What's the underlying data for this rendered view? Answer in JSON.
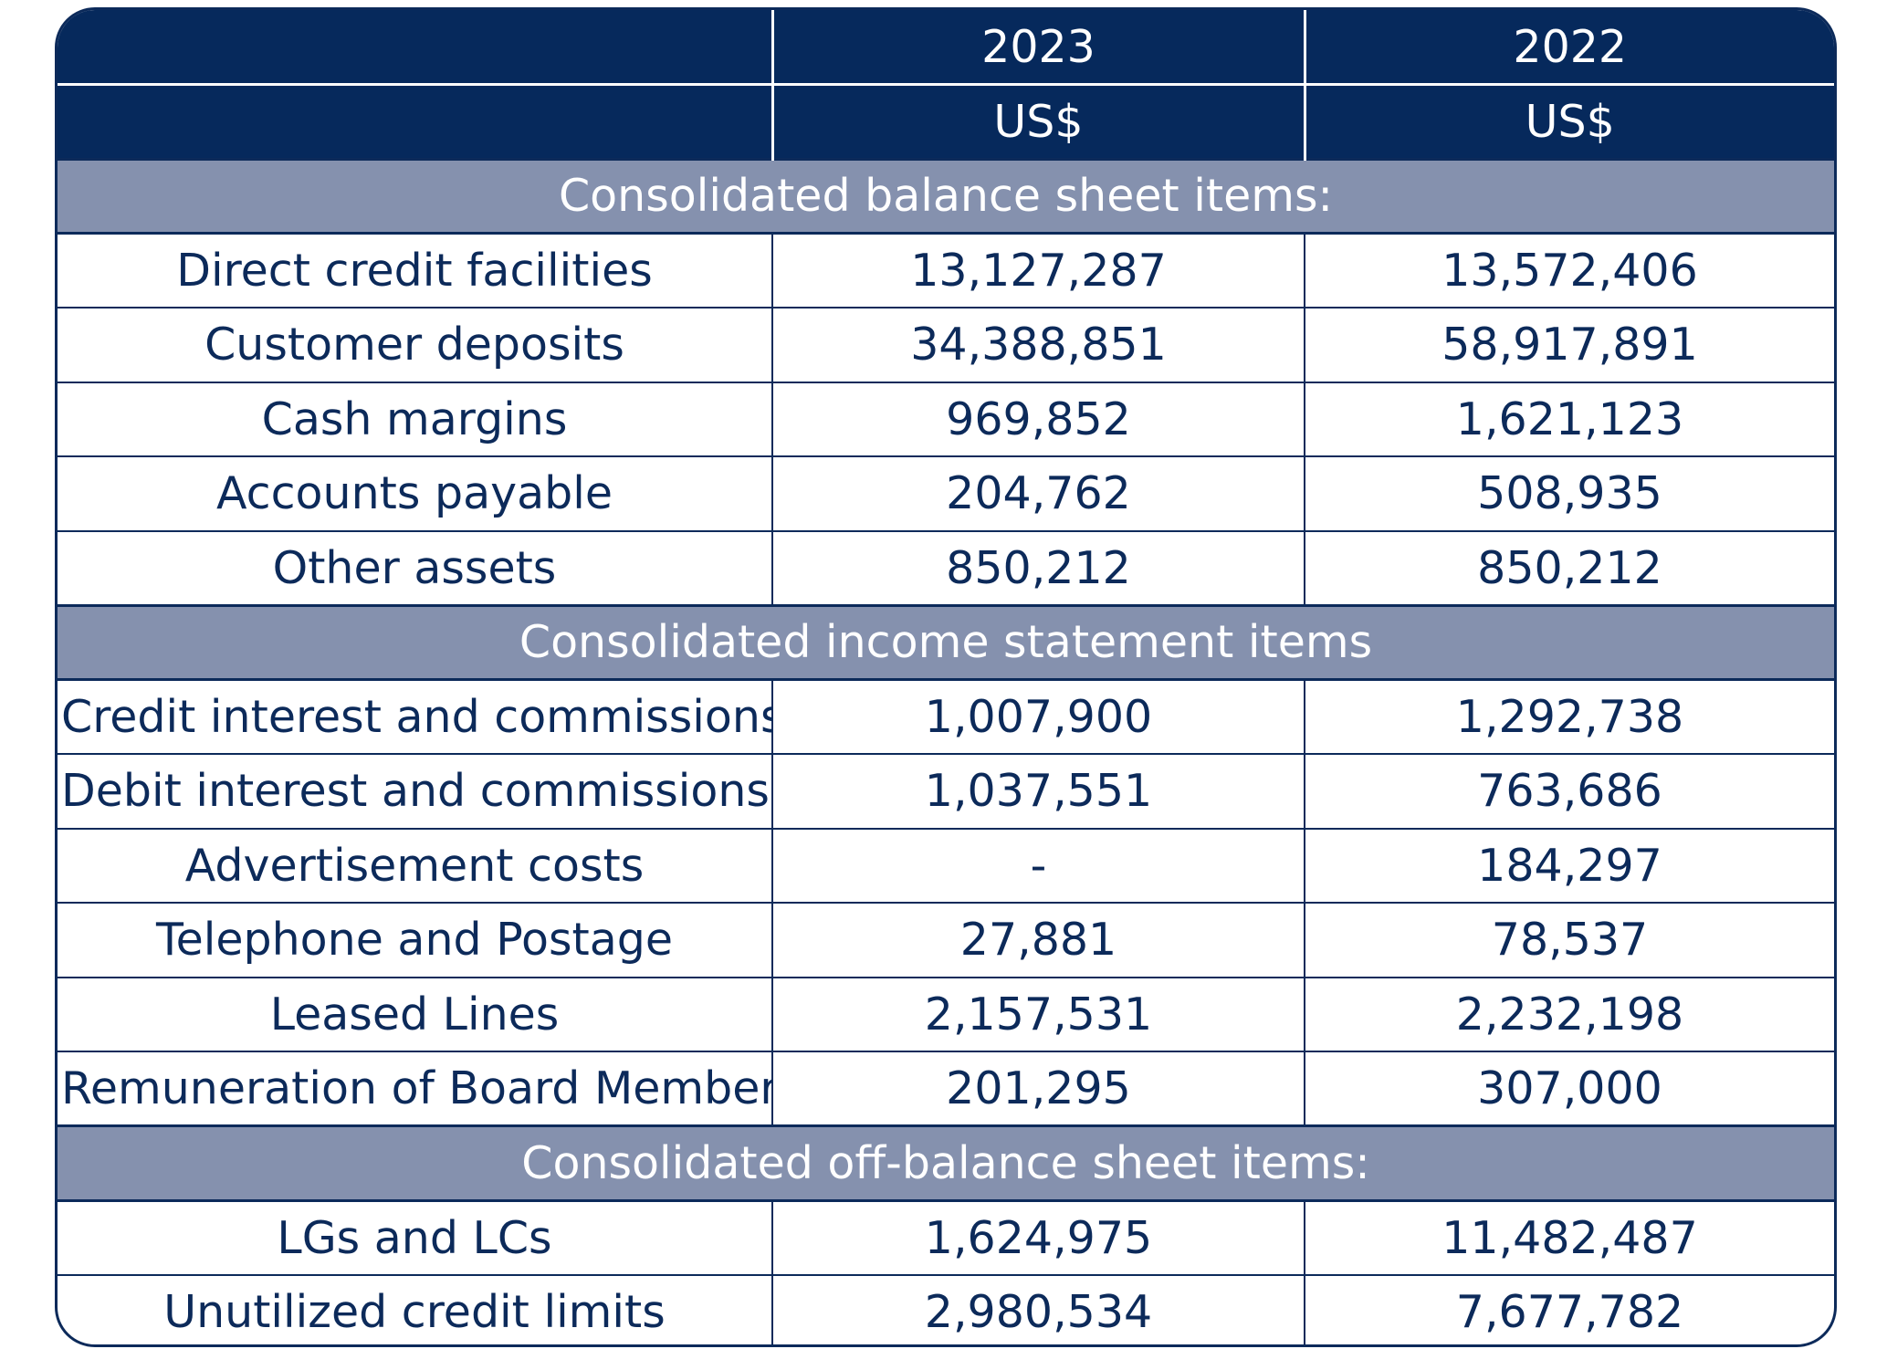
{
  "header": {
    "years": [
      "2023",
      "2022"
    ],
    "currency": [
      "US$",
      "US$"
    ]
  },
  "sections": [
    {
      "title": "Consolidated balance sheet items:",
      "rows": [
        {
          "label": "Direct credit facilities",
          "y2023": "13,127,287",
          "y2022": "13,572,406"
        },
        {
          "label": "Customer deposits",
          "y2023": "34,388,851",
          "y2022": "58,917,891"
        },
        {
          "label": "Cash margins",
          "y2023": "969,852",
          "y2022": "1,621,123"
        },
        {
          "label": "Accounts payable",
          "y2023": "204,762",
          "y2022": "508,935"
        },
        {
          "label": "Other assets",
          "y2023": "850,212",
          "y2022": "850,212"
        }
      ]
    },
    {
      "title": "Consolidated income statement items",
      "rows": [
        {
          "label": "Credit interest and commissions",
          "y2023": "1,007,900",
          "y2022": "1,292,738"
        },
        {
          "label": "Debit interest and commissions",
          "y2023": "1,037,551",
          "y2022": "763,686"
        },
        {
          "label": "Advertisement costs",
          "y2023": "-",
          "y2022": "184,297"
        },
        {
          "label": "Telephone and Postage",
          "y2023": "27,881",
          "y2022": "78,537"
        },
        {
          "label": "Leased Lines",
          "y2023": "2,157,531",
          "y2022": "2,232,198"
        },
        {
          "label": "Remuneration of Board Members",
          "y2023": "201,295",
          "y2022": "307,000"
        }
      ]
    },
    {
      "title": "Consolidated off-balance sheet items:",
      "rows": [
        {
          "label": "LGs and LCs",
          "y2023": "1,624,975",
          "y2022": "11,482,487"
        },
        {
          "label": "Unutilized credit limits",
          "y2023": "2,980,534",
          "y2022": "7,677,782"
        }
      ]
    }
  ]
}
